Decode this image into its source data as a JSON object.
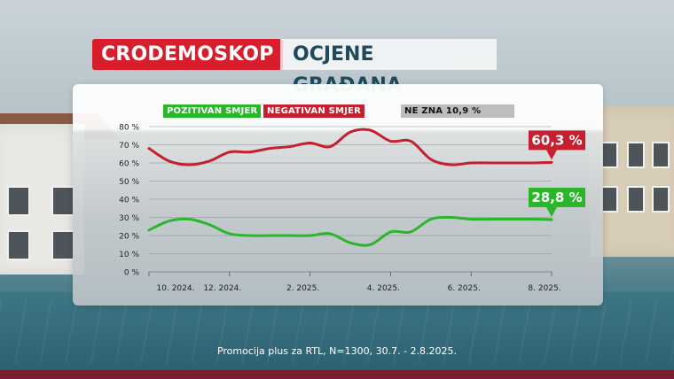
{
  "header": {
    "brand": "CRODEMOSKOP",
    "title": "OCJENE GRAĐANA"
  },
  "legend": {
    "positive": "POZITIVAN SMJER",
    "negative": "NEGATIVAN SMJER",
    "dont_know": "NE ZNA 10,9 %"
  },
  "footer": {
    "source": "Promocija plus za RTL, N=1300, 30.7. - 2.8.2025."
  },
  "colors": {
    "positive": "#2bb52b",
    "negative": "#c5202f",
    "brand": "#d81e2c",
    "title": "#1f4a5c"
  },
  "chart_data": {
    "type": "line",
    "x_tick_labels": [
      "10. 2024.",
      "12. 2024.",
      "2. 2025.",
      "4. 2025.",
      "6. 2025.",
      "8. 2025."
    ],
    "y_tick_labels": [
      "0 %",
      "10 %",
      "20 %",
      "30 %",
      "40 %",
      "50 %",
      "60 %",
      "70 %",
      "80 %"
    ],
    "ylim": [
      0,
      80
    ],
    "grid": true,
    "x": [
      0,
      0.5,
      1,
      1.5,
      2,
      2.5,
      3,
      3.5,
      4,
      4.5,
      5,
      5.5,
      6,
      6.5,
      7,
      7.5,
      8,
      8.5,
      9,
      9.5,
      10
    ],
    "series": [
      {
        "name": "NEGATIVAN SMJER",
        "color": "#c5202f",
        "end_label": "60,3 %",
        "values": [
          68,
          61,
          59,
          61,
          66,
          66,
          68,
          69,
          71,
          69,
          77,
          78,
          72,
          72,
          62,
          59,
          60,
          60,
          60,
          60,
          60.3
        ]
      },
      {
        "name": "POZITIVAN SMJER",
        "color": "#2bb52b",
        "end_label": "28,8 %",
        "values": [
          23,
          28,
          29,
          26,
          21,
          20,
          20,
          20,
          20,
          21,
          16,
          15,
          22,
          22,
          29,
          30,
          29,
          29,
          29,
          29,
          28.8
        ]
      }
    ]
  }
}
